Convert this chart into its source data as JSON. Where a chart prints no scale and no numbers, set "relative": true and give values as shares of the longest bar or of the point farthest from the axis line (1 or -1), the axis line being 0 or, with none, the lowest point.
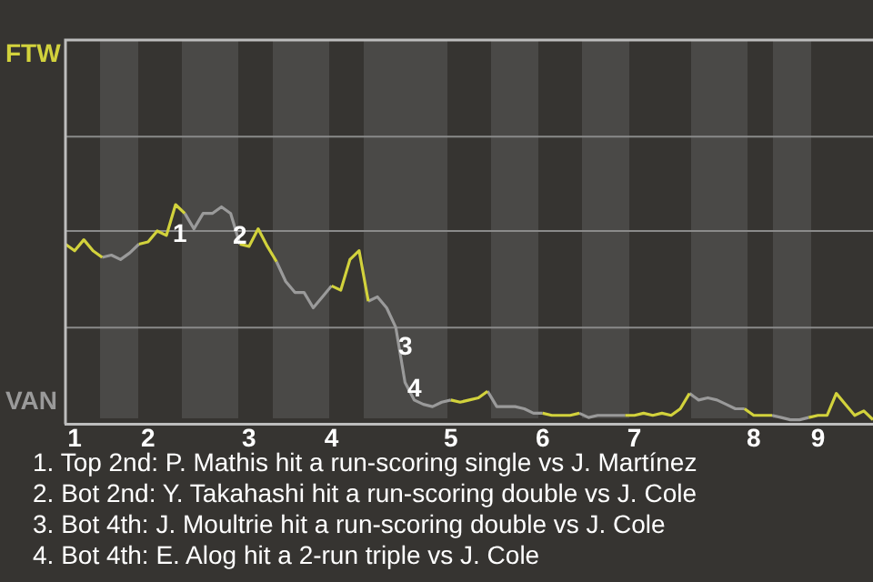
{
  "chart_data": {
    "type": "line",
    "relative": true,
    "categories": [
      null,
      "1",
      null,
      null,
      null,
      null,
      null,
      null,
      null,
      "2",
      null,
      null,
      null,
      null,
      null,
      null,
      null,
      null,
      null,
      null,
      "3",
      null,
      null,
      null,
      null,
      null,
      null,
      null,
      null,
      "4",
      null,
      null,
      null,
      null,
      null,
      null,
      null,
      null,
      null,
      null,
      null,
      null,
      "5",
      null,
      null,
      null,
      null,
      null,
      null,
      null,
      null,
      null,
      "6",
      null,
      null,
      null,
      null,
      null,
      null,
      null,
      null,
      null,
      "7",
      null,
      null,
      null,
      null,
      null,
      null,
      null,
      null,
      null,
      null,
      null,
      null,
      "8",
      null,
      null,
      null,
      null,
      null,
      null,
      "9",
      null,
      null,
      null,
      null,
      null,
      null
    ],
    "legend": false,
    "ref_lines": [
      {
        "axis": "y",
        "value": 0.44,
        "color": "#8a8a8a"
      },
      {
        "axis": "y",
        "value": 0.88,
        "color": "#8a8a8a"
      },
      {
        "axis": "y",
        "value": 1.31,
        "color": "#8a8a8a"
      }
    ],
    "marker": "none",
    "series": [
      {
        "color": "#d2d23c",
        "values": [
          0.82,
          0.79,
          0.84,
          0.79,
          0.76,
          null,
          null,
          null,
          0.82,
          0.83,
          0.88,
          0.86,
          1,
          0.96,
          null,
          null,
          null,
          null,
          null,
          0.82,
          0.81,
          0.89,
          0.81,
          0.74,
          null,
          null,
          null,
          null,
          null,
          0.63,
          0.61,
          0.75,
          0.79,
          0.56,
          null,
          null,
          null,
          null,
          null,
          null,
          null,
          null,
          0.11,
          0.1,
          0.11,
          0.12,
          0.15,
          null,
          null,
          null,
          null,
          null,
          0.05,
          0.04,
          0.04,
          0.04,
          0.05,
          null,
          null,
          null,
          null,
          0.04,
          0.04,
          0.05,
          0.04,
          0.05,
          0.04,
          0.07,
          0.14,
          null,
          null,
          null,
          null,
          null,
          0.07,
          0.04,
          0.04,
          0.04,
          null,
          null,
          null,
          0.03,
          0.04,
          0.04,
          0.14,
          0.09,
          0.04,
          0.06,
          0.02
        ]
      },
      {
        "color": "#9a9a9a",
        "values": [
          null,
          null,
          null,
          null,
          0.76,
          0.77,
          0.75,
          0.78,
          0.82,
          null,
          null,
          null,
          null,
          0.96,
          0.89,
          0.96,
          0.96,
          0.99,
          0.96,
          0.82,
          null,
          null,
          null,
          0.74,
          0.65,
          0.6,
          0.6,
          0.53,
          0.58,
          0.63,
          null,
          null,
          null,
          0.56,
          0.58,
          0.53,
          0.44,
          0.19,
          0.11,
          0.09,
          0.08,
          0.1,
          0.11,
          null,
          null,
          null,
          0.15,
          0.08,
          0.08,
          0.08,
          0.07,
          0.05,
          0.05,
          null,
          null,
          null,
          0.05,
          0.03,
          0.04,
          0.04,
          0.04,
          0.04,
          null,
          null,
          null,
          null,
          null,
          null,
          0.14,
          0.11,
          0.12,
          0.11,
          0.09,
          0.07,
          0.07,
          null,
          null,
          0.04,
          0.03,
          0.02,
          0.02,
          0.03,
          null,
          null,
          null,
          null,
          null,
          null,
          null
        ]
      }
    ],
    "annotations": [
      "FTW",
      "VAN",
      "1",
      "2",
      "3",
      "4",
      "1. Top 2nd: P. Mathis hit a run-scoring single vs J. Martínez",
      "2. Bot 2nd: Y. Takahashi hit a run-scoring double vs J. Cole",
      "3. Bot 4th: J. Moultrie hit a run-scoring double vs J. Cole",
      "4. Bot 4th: E. Alog hit a 2-run triple vs J. Cole"
    ]
  }
}
